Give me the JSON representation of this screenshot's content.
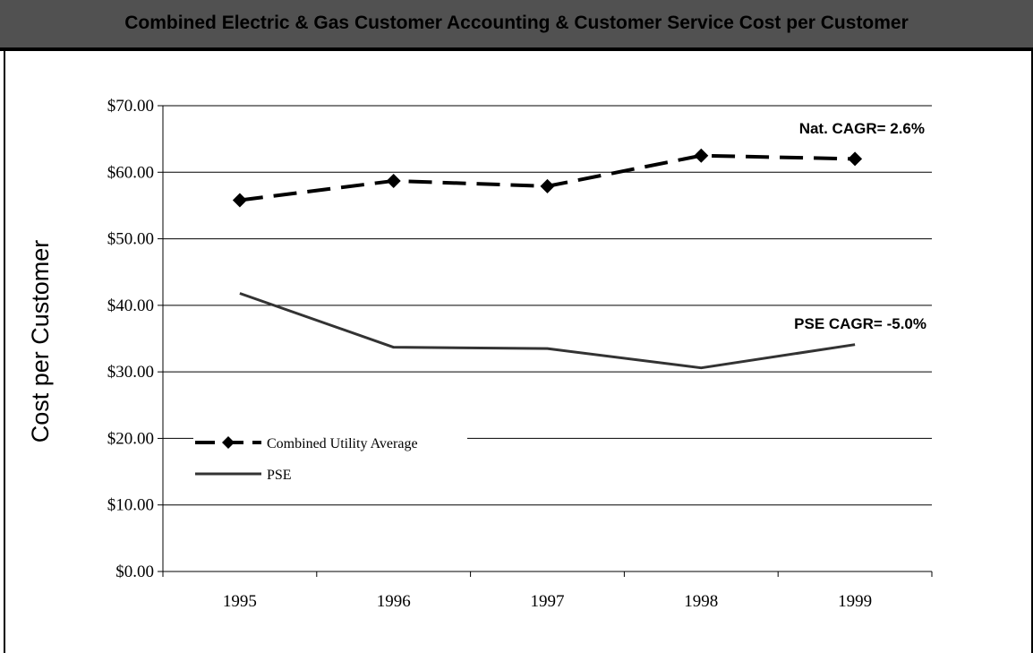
{
  "header": {
    "title": "Combined Electric & Gas Customer Accounting & Customer Service Cost per Customer"
  },
  "colors": {
    "header_bg": "#515151",
    "average_line": "#000000",
    "pse_line": "#333333"
  },
  "chart_data": {
    "type": "line",
    "title": "Combined Electric & Gas Customer Accounting & Customer Service Cost per Customer",
    "xlabel": "",
    "ylabel": "Cost per Customer",
    "categories": [
      "1995",
      "1996",
      "1997",
      "1998",
      "1999"
    ],
    "ylim": [
      0,
      70
    ],
    "yticks": [
      "$0.00",
      "$10.00",
      "$20.00",
      "$30.00",
      "$40.00",
      "$50.00",
      "$60.00",
      "$70.00"
    ],
    "grid": true,
    "legend": "lower-left",
    "series": [
      {
        "name": "Combined Utility Average",
        "values": [
          55.8,
          58.7,
          57.9,
          62.5,
          62.0
        ],
        "style": "dashed",
        "marker": "diamond"
      },
      {
        "name": "PSE",
        "values": [
          41.8,
          33.7,
          33.5,
          30.6,
          34.1
        ],
        "style": "solid",
        "marker": "none"
      }
    ],
    "annotations": [
      {
        "text": "Nat. CAGR= 2.6%",
        "series": "Combined Utility Average"
      },
      {
        "text": "PSE CAGR= -5.0%",
        "series": "PSE"
      }
    ]
  }
}
